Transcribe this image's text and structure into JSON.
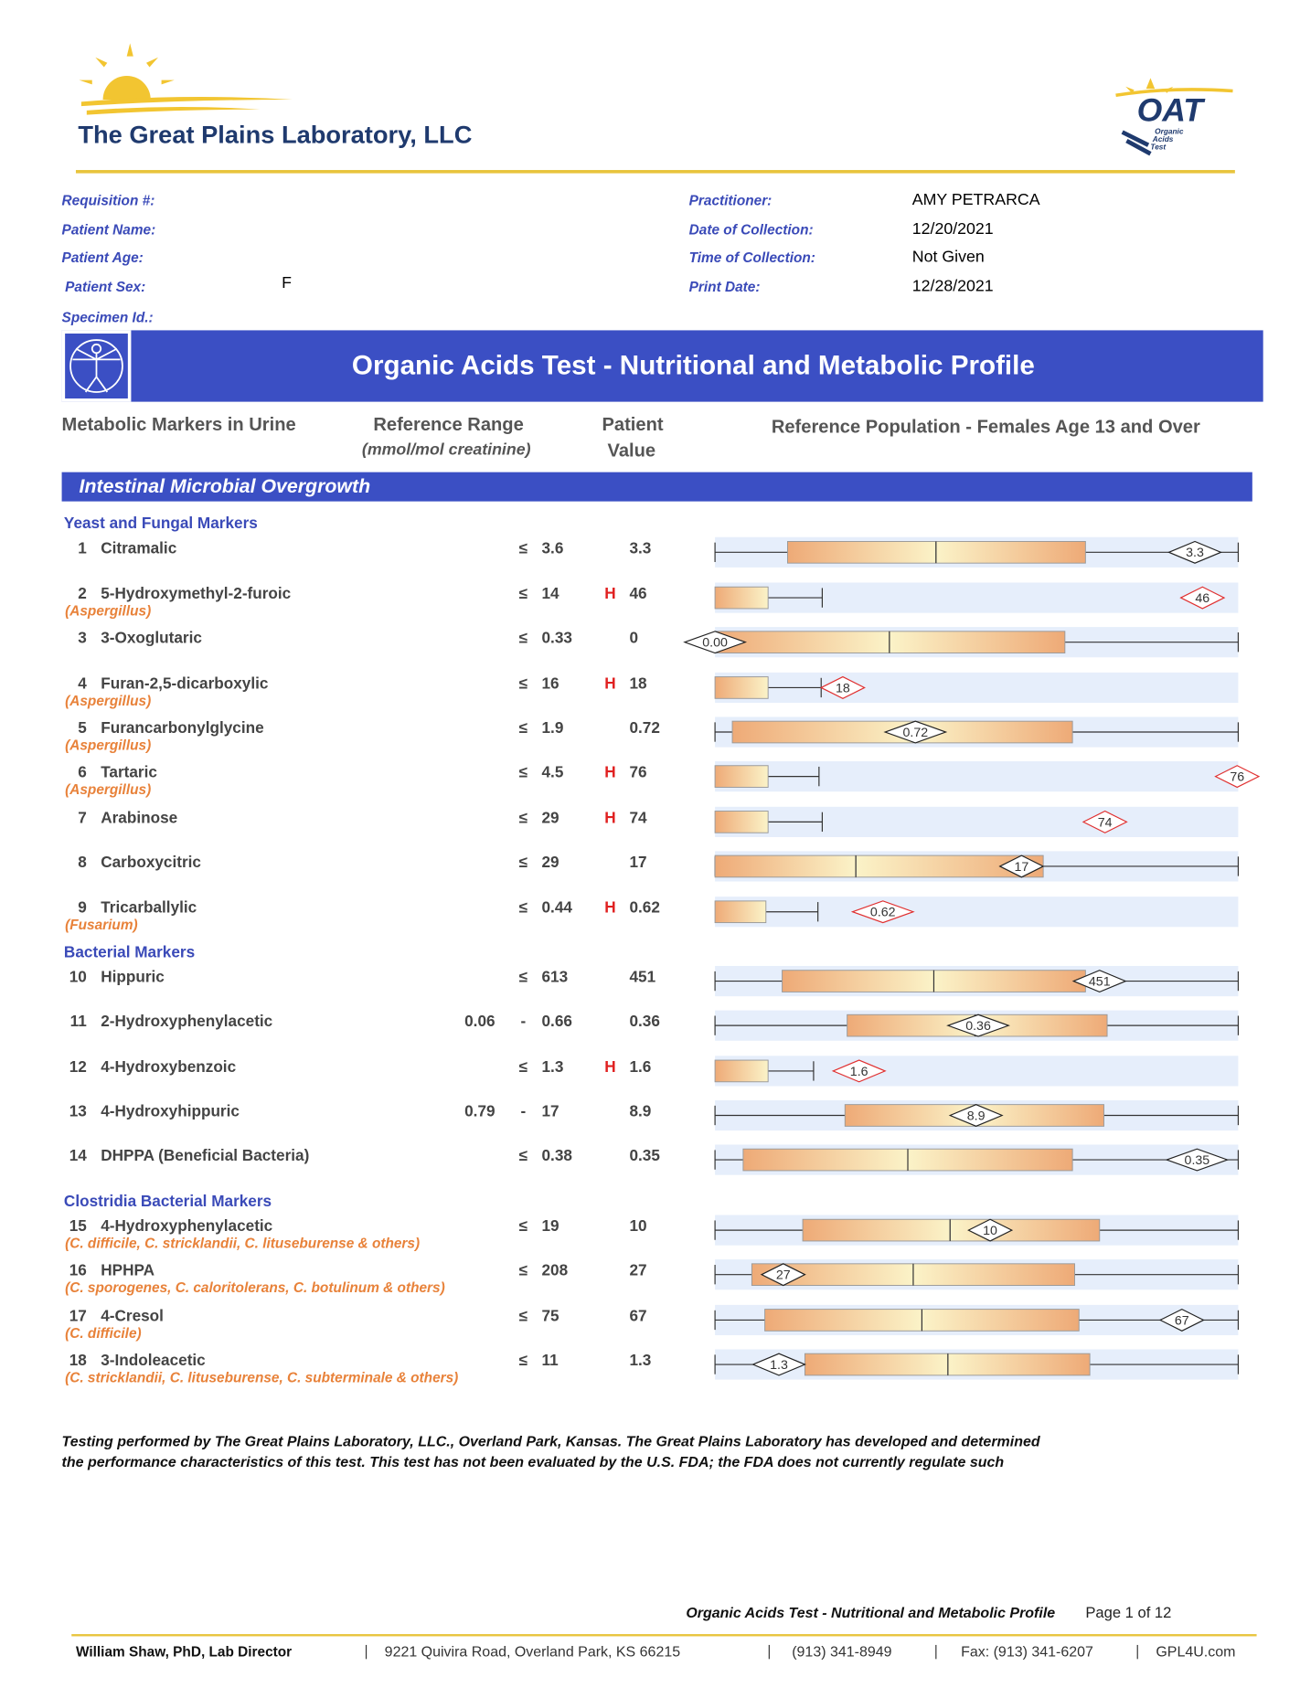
{
  "header": {
    "lab_name": "The Great Plains Laboratory, LLC",
    "logo": {
      "title": "OAT",
      "lines": [
        "Organic",
        "Acids",
        "Test"
      ]
    }
  },
  "patient": {
    "left": [
      {
        "label": "Requisition #:"
      },
      {
        "label": "Patient Name:"
      },
      {
        "label": "Patient Age:"
      },
      {
        "label": "Patient Sex:",
        "value": "F"
      },
      {
        "label": "Specimen Id.:"
      }
    ],
    "right": [
      {
        "label": "Practitioner:",
        "value": "AMY PETRARCA"
      },
      {
        "label": "Date of Collection:",
        "value": "12/20/2021"
      },
      {
        "label": "Time of Collection:",
        "value": "Not Given"
      },
      {
        "label": "Print Date:",
        "value": "12/28/2021"
      }
    ]
  },
  "banner": {
    "title": "Organic Acids Test - Nutritional and Metabolic Profile"
  },
  "columns": {
    "marker": "Metabolic Markers in Urine",
    "range": "Reference Range",
    "range_unit": "(mmol/mol creatinine)",
    "value": [
      "Patient",
      "Value"
    ],
    "population": "Reference Population - Females Age 13 and Over"
  },
  "section": {
    "title": "Intestinal Microbial Overgrowth",
    "groups": [
      {
        "title": "Yeast and Fungal Markers",
        "rows": [
          {
            "num": 1,
            "name": "Citramalic",
            "op": "≤",
            "ref": 3.6,
            "value": 3.3
          },
          {
            "num": 2,
            "name": "5-Hydroxymethyl-2-furoic",
            "organism": "(Aspergillus)",
            "op": "≤",
            "ref": 14,
            "flag": "H",
            "value": 46
          },
          {
            "num": 3,
            "name": "3-Oxoglutaric",
            "op": "≤",
            "ref": 0.33,
            "value": 0,
            "marker_label": "0.00"
          },
          {
            "num": 4,
            "name": "Furan-2,5-dicarboxylic",
            "organism": "(Aspergillus)",
            "op": "≤",
            "ref": 16,
            "flag": "H",
            "value": 18
          },
          {
            "num": 5,
            "name": "Furancarbonylglycine",
            "organism": "(Aspergillus)",
            "op": "≤",
            "ref": 1.9,
            "value": 0.72
          },
          {
            "num": 6,
            "name": "Tartaric",
            "organism": "(Aspergillus)",
            "op": "≤",
            "ref": 4.5,
            "flag": "H",
            "value": 76
          },
          {
            "num": 7,
            "name": "Arabinose",
            "op": "≤",
            "ref": 29,
            "flag": "H",
            "value": 74
          },
          {
            "num": 8,
            "name": "Carboxycitric",
            "op": "≤",
            "ref": 29,
            "value": 17
          },
          {
            "num": 9,
            "name": "Tricarballylic",
            "organism": "(Fusarium)",
            "op": "≤",
            "ref": 0.44,
            "flag": "H",
            "value": 0.62
          }
        ]
      },
      {
        "title": "Bacterial Markers",
        "rows": [
          {
            "num": 10,
            "name": "Hippuric",
            "op": "≤",
            "ref": 613,
            "value": 451
          },
          {
            "num": 11,
            "name": "2-Hydroxyphenylacetic",
            "ref_low": 0.06,
            "op": "-",
            "ref": 0.66,
            "value": 0.36
          },
          {
            "num": 12,
            "name": "4-Hydroxybenzoic",
            "op": "≤",
            "ref": 1.3,
            "flag": "H",
            "value": 1.6
          },
          {
            "num": 13,
            "name": "4-Hydroxyhippuric",
            "ref_low": 0.79,
            "op": "-",
            "ref": 17,
            "value": 8.9
          },
          {
            "num": 14,
            "name": "DHPPA (Beneficial Bacteria)",
            "op": "≤",
            "ref": 0.38,
            "value": 0.35
          }
        ]
      },
      {
        "title": "Clostridia Bacterial Markers",
        "rows": [
          {
            "num": 15,
            "name": "4-Hydroxyphenylacetic",
            "organism": "(C. difficile, C. stricklandii, C. lituseburense & others)",
            "op": "≤",
            "ref": 19,
            "value": 10
          },
          {
            "num": 16,
            "name": "HPHPA",
            "organism": "(C. sporogenes, C. caloritolerans, C. botulinum & others)",
            "op": "≤",
            "ref": 208,
            "value": 27
          },
          {
            "num": 17,
            "name": "4-Cresol",
            "organism": "(C. difficile)",
            "op": "≤",
            "ref": 75,
            "value": 67
          },
          {
            "num": 18,
            "name": "3-Indoleacetic",
            "organism": "(C. stricklandii, C. lituseburense, C. subterminale & others)",
            "op": "≤",
            "ref": 11,
            "value": 1.3
          }
        ]
      }
    ]
  },
  "disclaimer": [
    "Testing performed by The Great Plains Laboratory, LLC., Overland Park, Kansas. The Great Plains Laboratory has developed and determined",
    "the performance characteristics of this test. This test has not been evaluated by the U.S. FDA;  the FDA does not currently regulate such"
  ],
  "footer": {
    "report": "Organic Acids Test - Nutritional and Metabolic Profile",
    "page": "Page 1 of 12",
    "director": "William Shaw, PhD, Lab Director",
    "contacts": [
      "9221 Quivira Road, Overland Park, KS 66215",
      "(913) 341-8949",
      "Fax: (913) 341-6207",
      "GPL4U.com"
    ]
  }
}
